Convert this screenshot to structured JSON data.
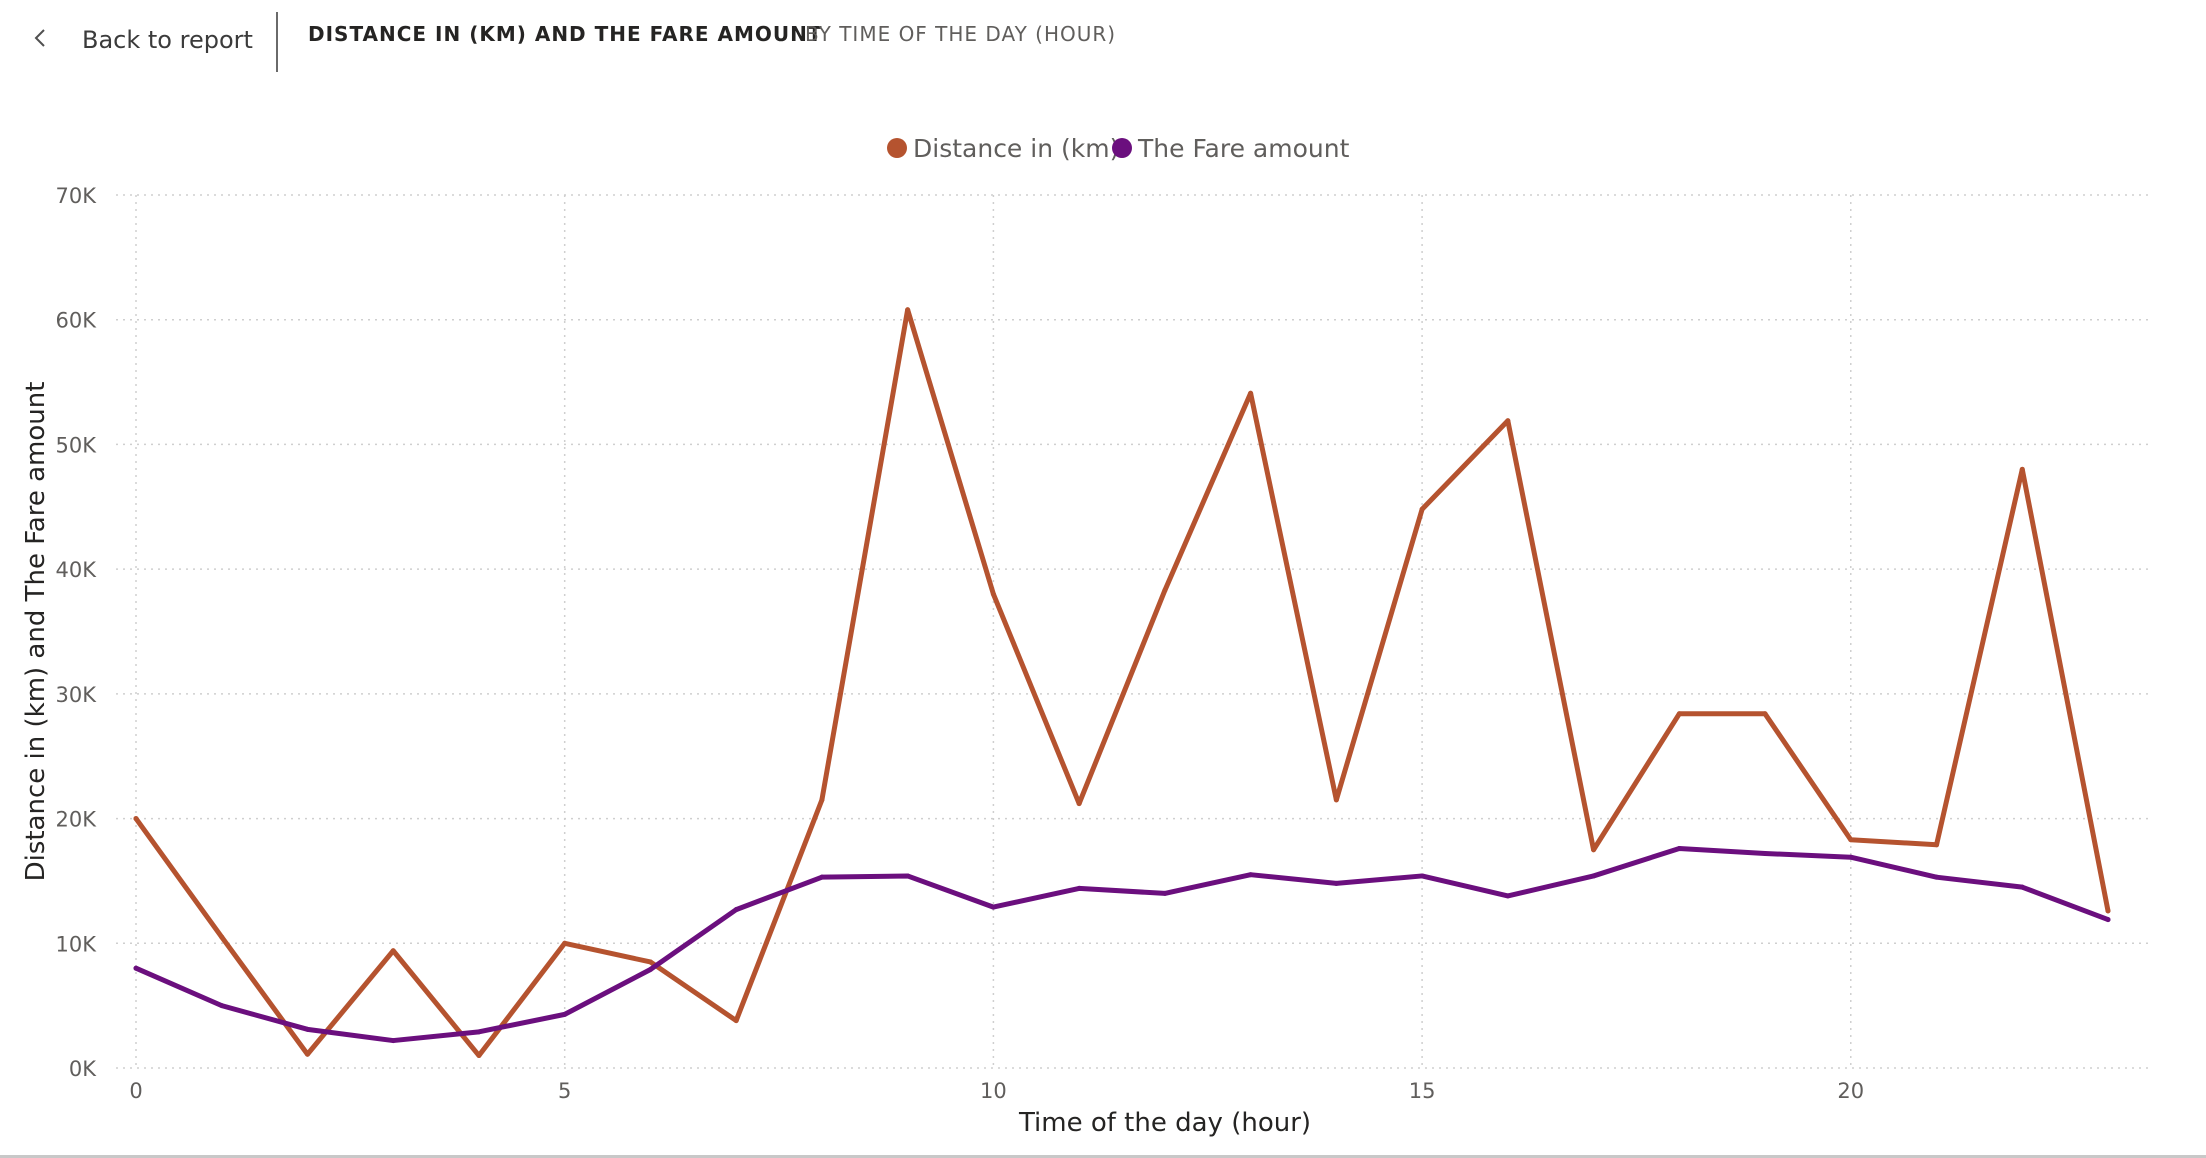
{
  "header": {
    "back_label": "Back to report",
    "title": "DISTANCE IN (KM) AND THE FARE AMOUNT",
    "subtitle": "BY TIME OF THE DAY (HOUR)"
  },
  "icons": {
    "back": "chevron-left-icon"
  },
  "chart_data": {
    "type": "line",
    "xlabel": "Time of the day (hour)",
    "ylabel": "Distance in (km) and The Fare amount",
    "x": [
      0,
      1,
      2,
      3,
      4,
      5,
      6,
      7,
      8,
      9,
      10,
      11,
      12,
      13,
      14,
      15,
      16,
      17,
      18,
      19,
      20,
      21,
      22,
      23
    ],
    "x_ticks": [
      0,
      5,
      10,
      15,
      20
    ],
    "xlim": [
      0,
      23
    ],
    "y_ticks": [
      0,
      10000,
      20000,
      30000,
      40000,
      50000,
      60000,
      70000
    ],
    "y_tick_labels": [
      "0K",
      "10K",
      "20K",
      "30K",
      "40K",
      "50K",
      "60K",
      "70K"
    ],
    "ylim": [
      0,
      70000
    ],
    "grid": true,
    "legend_position": "top-center",
    "series": [
      {
        "name": "Distance in (km)",
        "color": "#B5532F",
        "values": [
          20000,
          10500,
          1100,
          9400,
          1000,
          10000,
          8500,
          3800,
          21500,
          60800,
          38000,
          21200,
          38300,
          54100,
          21500,
          44800,
          51900,
          17500,
          28400,
          28400,
          18300,
          17900,
          48000,
          12600
        ]
      },
      {
        "name": "The Fare amount",
        "color": "#6B0F7E",
        "values": [
          8000,
          5000,
          3100,
          2200,
          2900,
          4300,
          7900,
          12700,
          15300,
          15400,
          12900,
          14400,
          14000,
          15500,
          14800,
          15400,
          13800,
          15400,
          17600,
          17200,
          16900,
          15300,
          14500,
          11900
        ]
      }
    ]
  }
}
